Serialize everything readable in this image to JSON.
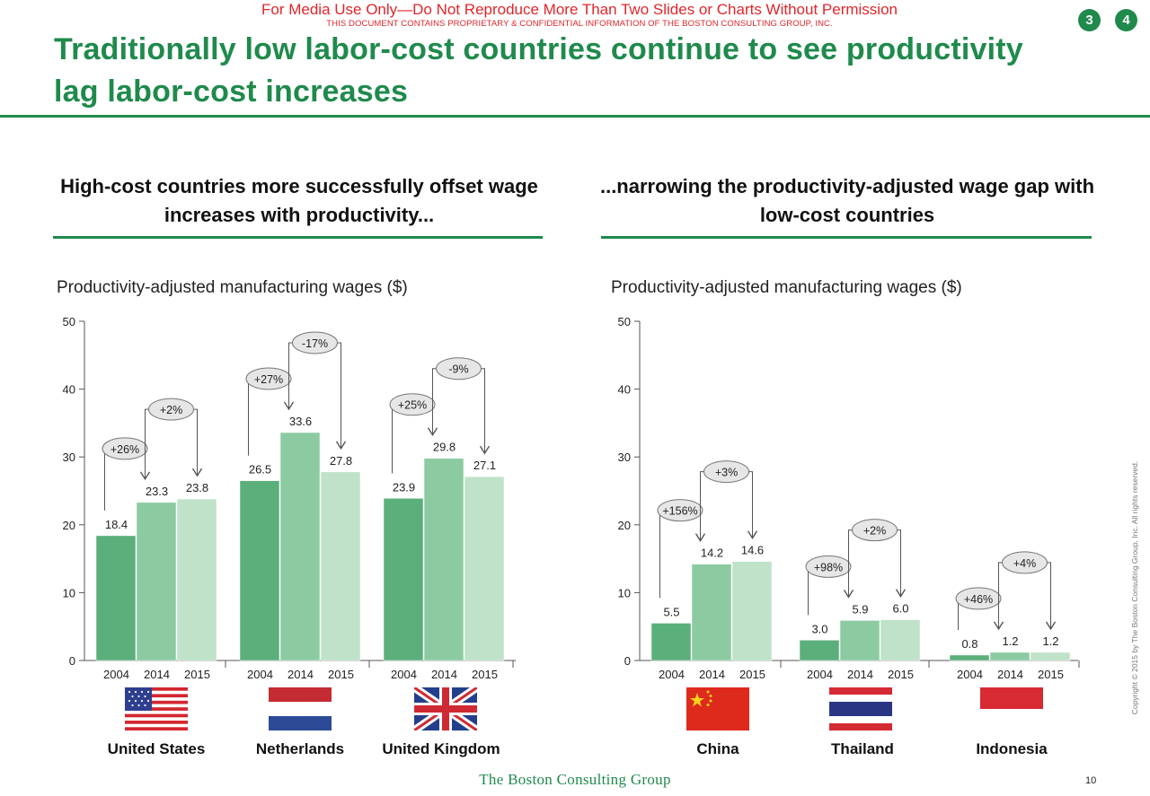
{
  "header": {
    "notice": "For Media Use Only—Do Not Reproduce More Than Two Slides or Charts Without Permission",
    "confidential": "THIS DOCUMENT CONTAINS PROPRIETARY & CONFIDENTIAL INFORMATION OF THE BOSTON CONSULTING GROUP, INC.",
    "title": "Traditionally low labor-cost countries continue to see productivity lag labor-cost increases",
    "badges": [
      "3",
      "4"
    ]
  },
  "left": {
    "heading": "High-cost countries more successfully offset wage increases with productivity...",
    "chart_label": "Productivity-adjusted manufacturing wages ($)"
  },
  "right": {
    "heading": "...narrowing the productivity-adjusted wage gap with low-cost countries",
    "chart_label": "Productivity-adjusted manufacturing wages ($)"
  },
  "colors": {
    "green": "#1f8a4c",
    "bar_2004": "#5aaf7a",
    "bar_2014": "#8ccba2",
    "bar_2015": "#bfe2c9",
    "notice_red": "#e0262b"
  },
  "chart_data": [
    {
      "type": "bar",
      "ylim": [
        0,
        50
      ],
      "yticks": [
        "0",
        "10",
        "20",
        "30",
        "40",
        "50"
      ],
      "years": [
        "2004",
        "2014",
        "2015"
      ],
      "groups": [
        {
          "country": "United States",
          "flag": "us-flag",
          "values": [
            18.4,
            23.3,
            23.8
          ],
          "labels": [
            "18.4",
            "23.3",
            "23.8"
          ],
          "changes": [
            "+26%",
            "+2%"
          ]
        },
        {
          "country": "Netherlands",
          "flag": "nl-flag",
          "values": [
            26.5,
            33.6,
            27.8
          ],
          "labels": [
            "26.5",
            "33.6",
            "27.8"
          ],
          "changes": [
            "+27%",
            "-17%"
          ]
        },
        {
          "country": "United Kingdom",
          "flag": "uk-flag",
          "values": [
            23.9,
            29.8,
            27.1
          ],
          "labels": [
            "23.9",
            "29.8",
            "27.1"
          ],
          "changes": [
            "+25%",
            "-9%"
          ]
        }
      ]
    },
    {
      "type": "bar",
      "ylim": [
        0,
        50
      ],
      "yticks": [
        "0",
        "10",
        "20",
        "30",
        "40",
        "50"
      ],
      "years": [
        "2004",
        "2014",
        "2015"
      ],
      "groups": [
        {
          "country": "China",
          "flag": "cn-flag",
          "values": [
            5.5,
            14.2,
            14.6
          ],
          "labels": [
            "5.5",
            "14.2",
            "14.6"
          ],
          "changes": [
            "+156%",
            "+3%"
          ]
        },
        {
          "country": "Thailand",
          "flag": "th-flag",
          "values": [
            3.0,
            5.9,
            6.0
          ],
          "labels": [
            "3.0",
            "5.9",
            "6.0"
          ],
          "changes": [
            "+98%",
            "+2%"
          ]
        },
        {
          "country": "Indonesia",
          "flag": "id-flag",
          "values": [
            0.8,
            1.2,
            1.2
          ],
          "labels": [
            "0.8",
            "1.2",
            "1.2"
          ],
          "changes": [
            "+46%",
            "+4%"
          ]
        }
      ]
    }
  ],
  "footer": {
    "logo": "The Boston Consulting Group",
    "page_number": "10",
    "copyright": "Copyright © 2015 by The Boston Consulting Group, Inc. All rights reserved."
  }
}
